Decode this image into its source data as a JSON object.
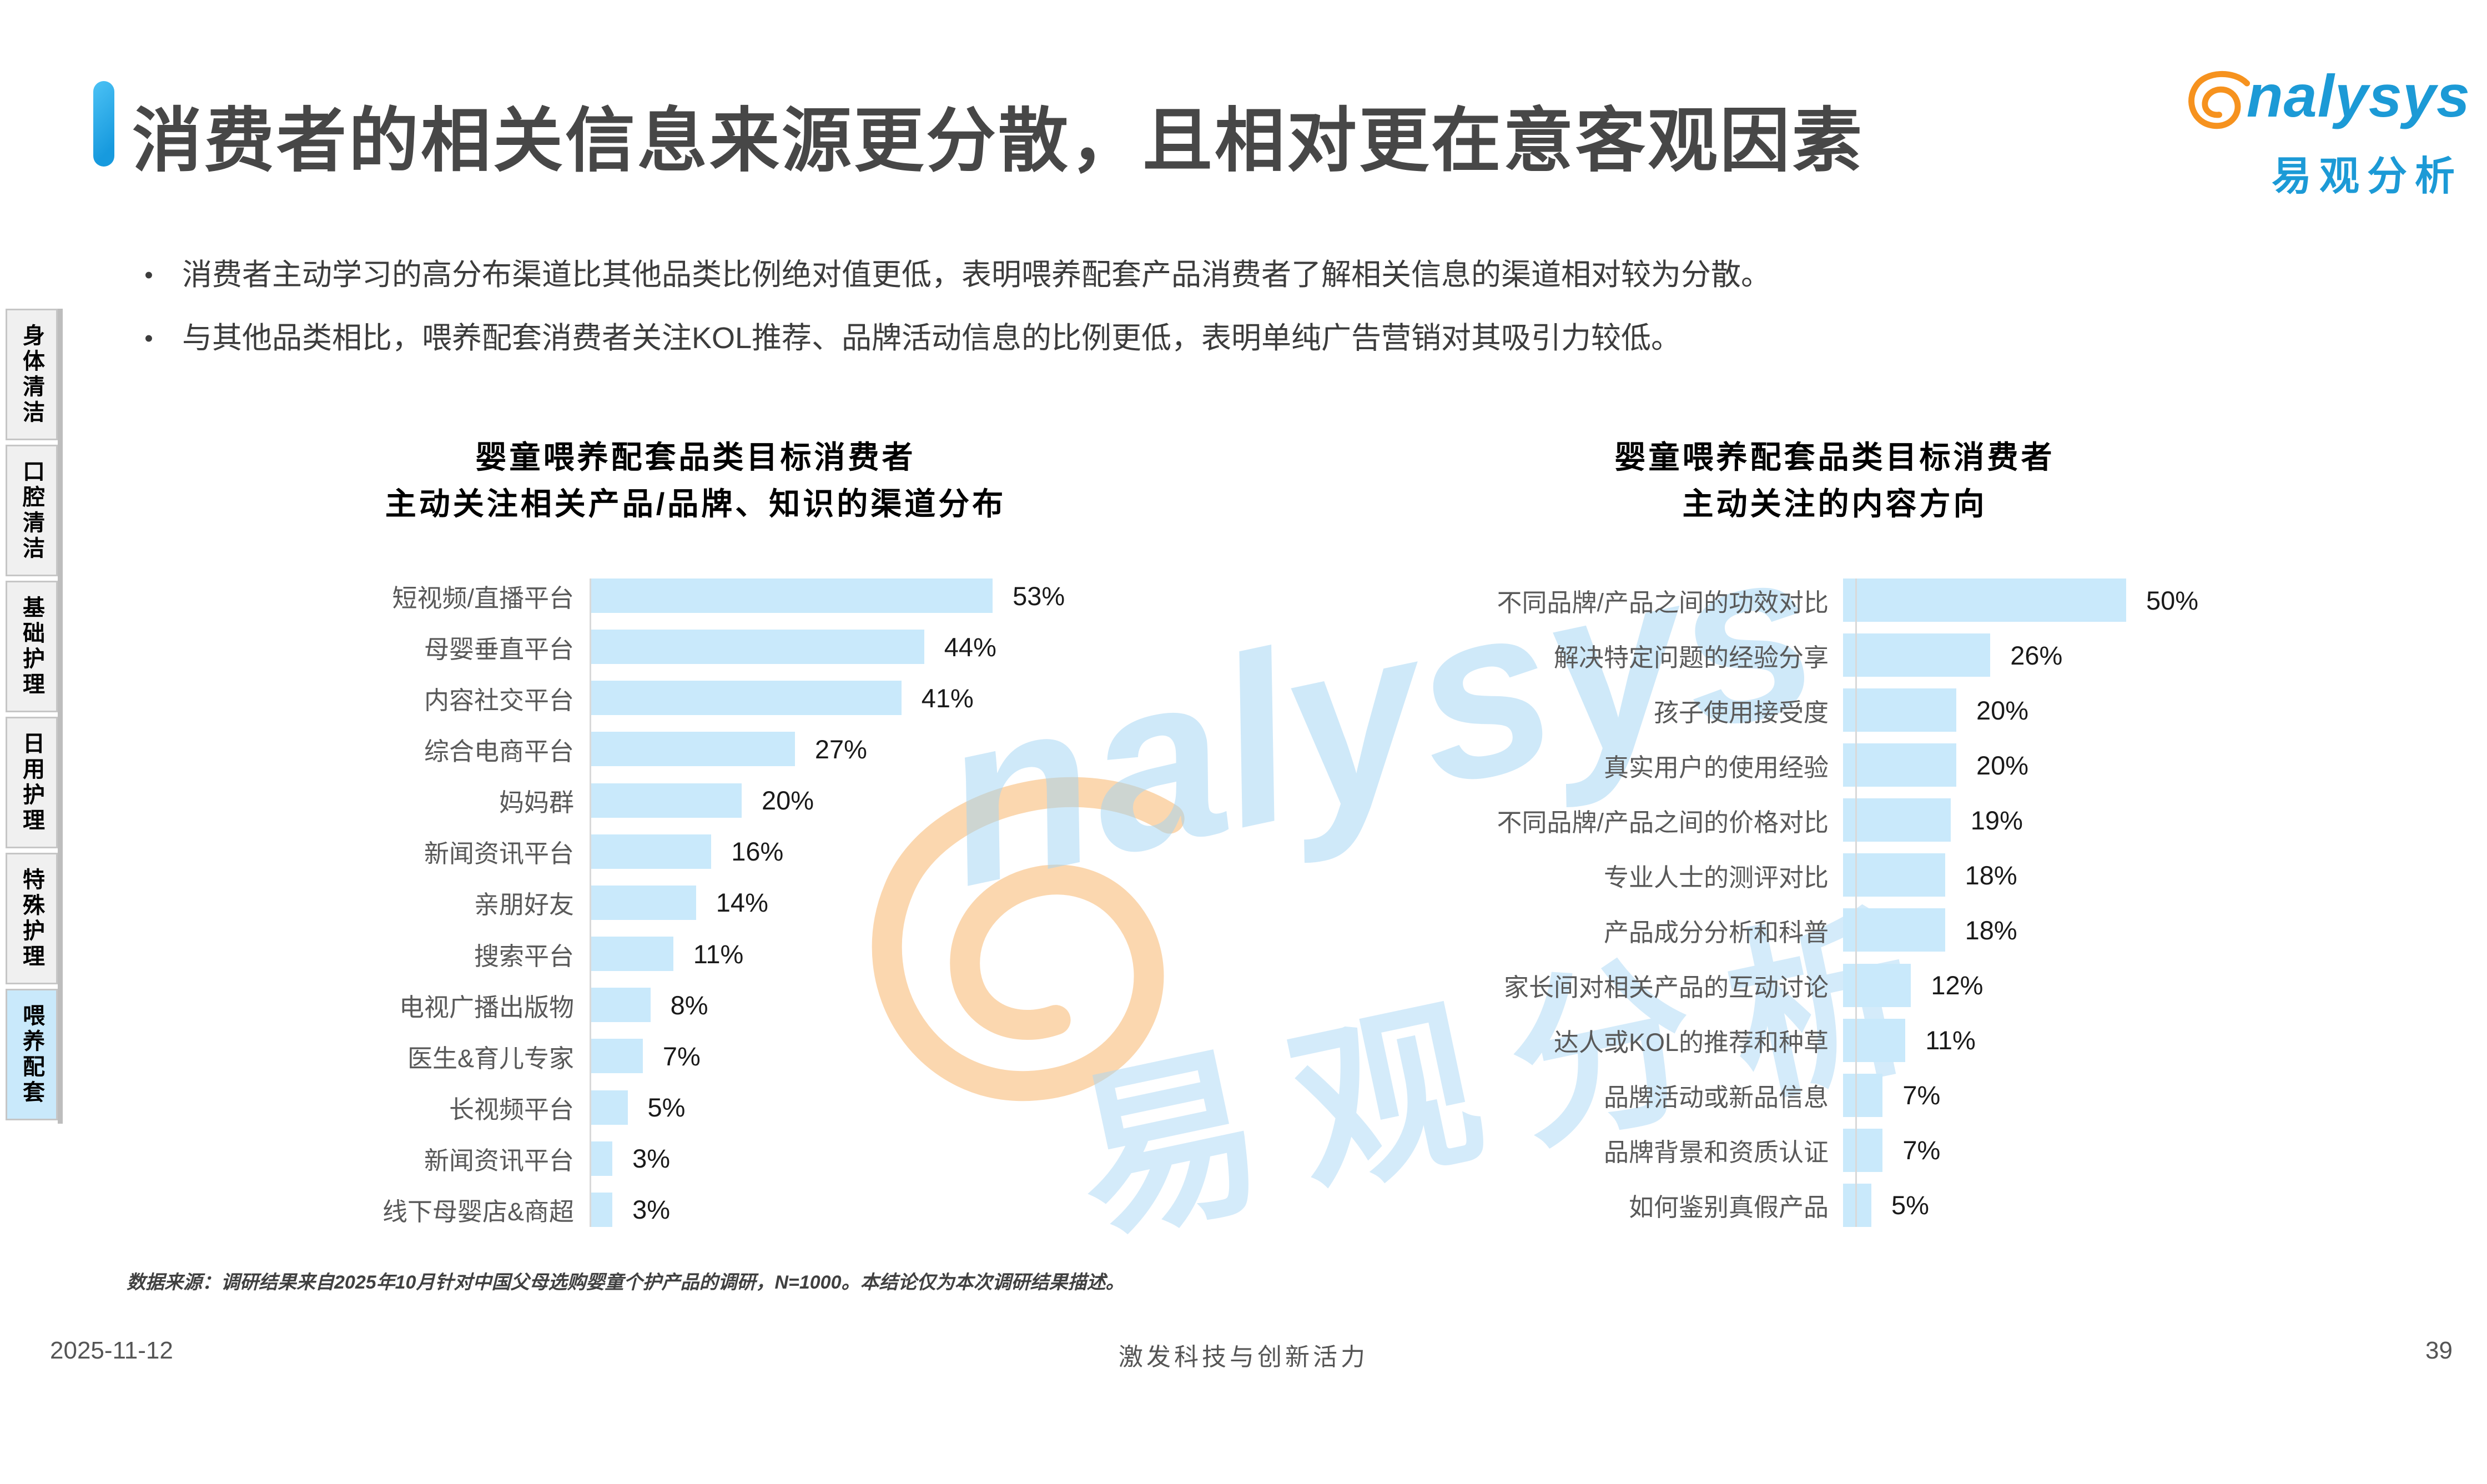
{
  "slide": {
    "title": "消费者的相关信息来源更分散，且相对更在意客观因素",
    "bullets": [
      "消费者主动学习的高分布渠道比其他品类比例绝对值更低，表明喂养配套产品消费者了解相关信息的渠道相对较为分散。",
      "与其他品类相比，喂养配套消费者关注KOL推荐、品牌活动信息的比例更低，表明单纯广告营销对其吸引力较低。"
    ],
    "bullet_marker": "•",
    "source_note": "数据来源：调研结果来自2025年10月针对中国父母选购婴童个护产品的调研，N=1000。本结论仅为本次调研结果描述。",
    "footer": {
      "date": "2025-11-12",
      "slogan": "激发科技与创新活力",
      "page_number": "39"
    }
  },
  "logo": {
    "brand": "analysys",
    "brand_tail": "nalysys",
    "brand_cn": "易观分析",
    "blue": "#1c9ad6",
    "orange": "#f6921e"
  },
  "watermark": {
    "brand": "analysys",
    "brand_tail": "nalysys",
    "brand_cn": "易观分析"
  },
  "sidebar": {
    "items": [
      {
        "label": "身体清洁",
        "active": false
      },
      {
        "label": "口腔清洁",
        "active": false
      },
      {
        "label": "基础护理",
        "active": false
      },
      {
        "label": "日用护理",
        "active": false
      },
      {
        "label": "特殊护理",
        "active": false
      },
      {
        "label": "喂养配套",
        "active": true
      }
    ]
  },
  "theme": {
    "bar_color": "#c9e9fb",
    "accent_blue": "#29a8e0",
    "label_gray": "#595959"
  },
  "chart_data": [
    {
      "type": "bar",
      "orientation": "horizontal",
      "title_line1": "婴童喂养配套品类目标消费者",
      "title_line2": "主动关注相关产品/品牌、知识的渠道分布",
      "categories": [
        "短视频/直播平台",
        "母婴垂直平台",
        "内容社交平台",
        "综合电商平台",
        "妈妈群",
        "新闻资讯平台",
        "亲朋好友",
        "搜索平台",
        "电视广播出版物",
        "医生&育儿专家",
        "长视频平台",
        "新闻资讯平台",
        "线下母婴店&商超"
      ],
      "values": [
        53,
        44,
        41,
        27,
        20,
        16,
        14,
        11,
        8,
        7,
        5,
        3,
        3
      ],
      "value_suffix": "%",
      "bar_color": "#c9e9fb",
      "xlim": [
        0,
        60
      ],
      "grid": false,
      "legend": "none"
    },
    {
      "type": "bar",
      "orientation": "horizontal",
      "title_line1": "婴童喂养配套品类目标消费者",
      "title_line2": "主动关注的内容方向",
      "categories": [
        "不同品牌/产品之间的功效对比",
        "解决特定问题的经验分享",
        "孩子使用接受度",
        "真实用户的使用经验",
        "不同品牌/产品之间的价格对比",
        "专业人士的测评对比",
        "产品成分分析和科普",
        "家长间对相关产品的互动讨论",
        "达人或KOL的推荐和种草",
        "品牌活动或新品信息",
        "品牌背景和资质认证",
        "如何鉴别真假产品"
      ],
      "values": [
        50,
        26,
        20,
        20,
        19,
        18,
        18,
        12,
        11,
        7,
        7,
        5
      ],
      "value_suffix": "%",
      "bar_color": "#c9e9fb",
      "xlim": [
        0,
        60
      ],
      "grid": false,
      "legend": "none"
    }
  ]
}
